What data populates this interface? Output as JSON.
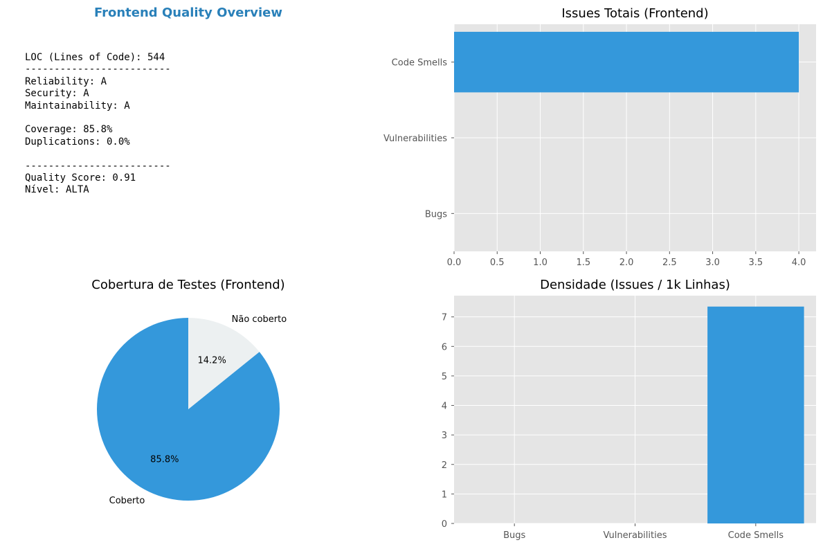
{
  "summary": {
    "title": "Frontend Quality Overview",
    "lines": [
      "LOC (Lines of Code): 544",
      "-------------------------",
      "Reliability: A",
      "Security: A",
      "Maintainability: A",
      "",
      "Coverage: 85.8%",
      "Duplications: 0.0%",
      "",
      "-------------------------",
      "Quality Score: 0.91",
      "Nível: ALTA"
    ]
  },
  "chart_data": [
    {
      "type": "bar",
      "orientation": "horizontal",
      "title": "Issues Totais (Frontend)",
      "categories": [
        "Bugs",
        "Vulnerabilities",
        "Code Smells"
      ],
      "values": [
        0,
        0,
        4
      ],
      "xlim": [
        0,
        4.2
      ],
      "xticks": [
        "0.0",
        "0.5",
        "1.0",
        "1.5",
        "2.0",
        "2.5",
        "3.0",
        "3.5",
        "4.0"
      ],
      "grid": true,
      "color": "#3498db"
    },
    {
      "type": "pie",
      "title": "Cobertura de Testes (Frontend)",
      "labels": [
        "Coberto",
        "Não coberto"
      ],
      "values": [
        85.8,
        14.2
      ],
      "pct_labels": [
        "85.8%",
        "14.2%"
      ],
      "colors": [
        "#3498db",
        "#ecf0f1"
      ]
    },
    {
      "type": "bar",
      "title": "Densidade (Issues / 1k Linhas)",
      "categories": [
        "Bugs",
        "Vulnerabilities",
        "Code Smells"
      ],
      "values": [
        0,
        0,
        7.35
      ],
      "ylim": [
        0,
        7.72
      ],
      "yticks": [
        "0",
        "1",
        "2",
        "3",
        "4",
        "5",
        "6",
        "7"
      ],
      "grid": true,
      "color": "#3498db"
    }
  ],
  "style": {
    "axes_bg": "#e5e5e5",
    "grid": "#ffffff",
    "tick_text": "#555555"
  }
}
